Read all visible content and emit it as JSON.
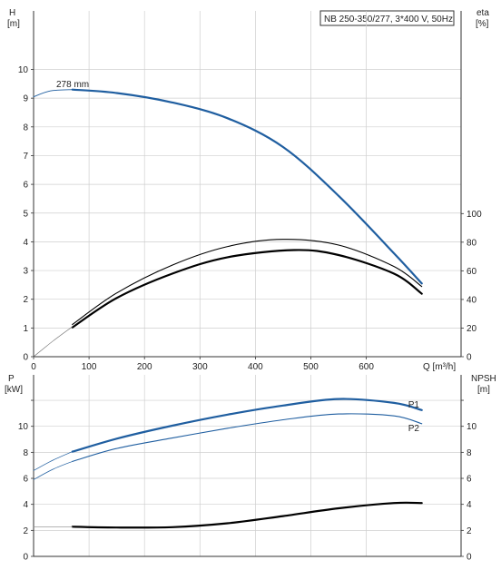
{
  "chart_data": [
    {
      "type": "line",
      "title": "NB 250-350/277, 3*400 V, 50Hz",
      "xlabel": "Q [m³/h]",
      "ylabel_left": [
        "H",
        "[m]"
      ],
      "ylabel_right": [
        "eta",
        "[%]"
      ],
      "xlim": [
        0,
        700
      ],
      "x_ticks": [
        "0",
        "100",
        "200",
        "300",
        "400",
        "500",
        "600"
      ],
      "ylim_left": [
        0,
        11.3
      ],
      "y_ticks_left": [
        "0",
        "1",
        "2",
        "3",
        "4",
        "5",
        "6",
        "7",
        "8",
        "9",
        "10"
      ],
      "ylim_right": [
        0,
        226
      ],
      "y_ticks_right": [
        "0",
        "20",
        "40",
        "60",
        "80",
        "100"
      ],
      "annotation": "278 mm",
      "grid": true,
      "series": [
        {
          "axis": "left",
          "color": "#1f5ea0",
          "width": 2.2,
          "points": [
            [
              70,
              9.3
            ],
            [
              150,
              9.18
            ],
            [
              250,
              8.85
            ],
            [
              350,
              8.3
            ],
            [
              450,
              7.3
            ],
            [
              550,
              5.6
            ],
            [
              650,
              3.6
            ],
            [
              700,
              2.55
            ]
          ]
        },
        {
          "axis": "left",
          "color": "#1f5ea0",
          "width": 0.9,
          "points": [
            [
              0,
              9.05
            ],
            [
              30,
              9.25
            ],
            [
              70,
              9.3
            ]
          ]
        },
        {
          "axis": "right",
          "color": "#000000",
          "width": 1.1,
          "points": [
            [
              70,
              22.5
            ],
            [
              150,
              44.5
            ],
            [
              250,
              64
            ],
            [
              350,
              77
            ],
            [
              450,
              82
            ],
            [
              550,
              78
            ],
            [
              650,
              63
            ],
            [
              700,
              49
            ]
          ]
        },
        {
          "axis": "right",
          "color": "#000000",
          "width": 2.2,
          "points": [
            [
              70,
              20.5
            ],
            [
              150,
              41
            ],
            [
              250,
              58
            ],
            [
              350,
              69.5
            ],
            [
              470,
              74.5
            ],
            [
              550,
              71
            ],
            [
              650,
              58
            ],
            [
              700,
              44
            ]
          ]
        },
        {
          "axis": "right",
          "color": "#666666",
          "width": 0.6,
          "points": [
            [
              0,
              0
            ],
            [
              35,
              11
            ],
            [
              70,
              21
            ]
          ]
        }
      ]
    },
    {
      "type": "line",
      "ylabel_left": [
        "P",
        "[kW]"
      ],
      "ylabel_right": [
        "NPSH",
        "[m]"
      ],
      "xlim": [
        0,
        700
      ],
      "ylim_left": [
        0,
        12.5
      ],
      "y_ticks_left": [
        "0",
        "2",
        "4",
        "6",
        "8",
        "10"
      ],
      "ylim_right": [
        0,
        12.5
      ],
      "y_ticks_right": [
        "0",
        "2",
        "4",
        "6",
        "8",
        "10"
      ],
      "grid": true,
      "series": [
        {
          "name": "P1",
          "axis": "left",
          "color": "#1f5ea0",
          "width": 2.2,
          "points": [
            [
              70,
              8.05
            ],
            [
              150,
              9.05
            ],
            [
              250,
              10.05
            ],
            [
              350,
              10.9
            ],
            [
              450,
              11.6
            ],
            [
              550,
              12.1
            ],
            [
              650,
              11.8
            ],
            [
              700,
              11.25
            ]
          ]
        },
        {
          "name": "P2",
          "axis": "left",
          "color": "#1f5ea0",
          "width": 1.1,
          "points": [
            [
              70,
              7.3
            ],
            [
              150,
              8.3
            ],
            [
              250,
              9.1
            ],
            [
              350,
              9.85
            ],
            [
              450,
              10.5
            ],
            [
              550,
              10.95
            ],
            [
              650,
              10.8
            ],
            [
              700,
              10.2
            ]
          ]
        },
        {
          "axis": "left",
          "color": "#1f5ea0",
          "width": 0.7,
          "points": [
            [
              0,
              6.6
            ],
            [
              35,
              7.4
            ],
            [
              70,
              8.05
            ]
          ]
        },
        {
          "axis": "left",
          "color": "#1f5ea0",
          "width": 0.7,
          "points": [
            [
              0,
              5.9
            ],
            [
              35,
              6.7
            ],
            [
              70,
              7.3
            ]
          ]
        },
        {
          "axis": "right",
          "color": "#000000",
          "width": 2.2,
          "points": [
            [
              70,
              2.28
            ],
            [
              150,
              2.22
            ],
            [
              250,
              2.25
            ],
            [
              350,
              2.55
            ],
            [
              450,
              3.1
            ],
            [
              550,
              3.7
            ],
            [
              650,
              4.1
            ],
            [
              700,
              4.1
            ]
          ]
        },
        {
          "axis": "right",
          "color": "#888888",
          "width": 0.6,
          "points": [
            [
              0,
              2.28
            ],
            [
              70,
              2.28
            ]
          ]
        }
      ]
    }
  ]
}
